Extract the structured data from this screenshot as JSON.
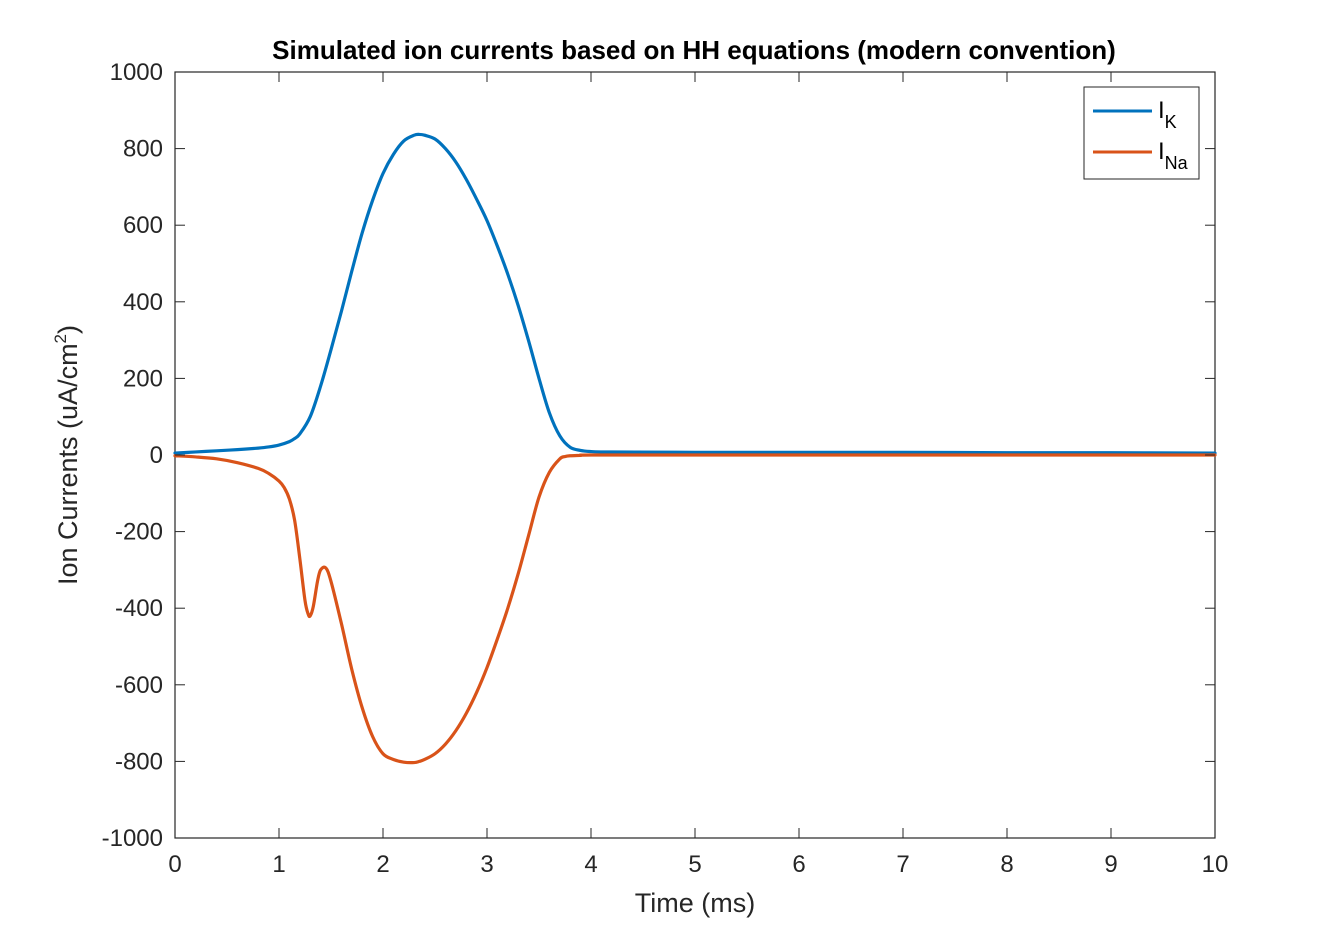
{
  "chart_data": {
    "type": "line",
    "title": "Simulated ion currents based on HH equations (modern convention)",
    "xlabel": "Time (ms)",
    "ylabel": {
      "main": "Ion Currents (uA/cm",
      "sup": "2",
      "end": ")"
    },
    "xlim": [
      0,
      10
    ],
    "ylim": [
      -1000,
      1000
    ],
    "xticks": [
      0,
      1,
      2,
      3,
      4,
      5,
      6,
      7,
      8,
      9,
      10
    ],
    "yticks": [
      -1000,
      -800,
      -600,
      -400,
      -200,
      0,
      200,
      400,
      600,
      800,
      1000
    ],
    "grid": false,
    "legend_position": "top-right",
    "series": [
      {
        "name": "I_K",
        "label_main": "I",
        "label_sub": "K",
        "color": "#0072BD",
        "x": [
          0,
          0.2,
          0.4,
          0.6,
          0.8,
          0.9,
          1.0,
          1.1,
          1.15,
          1.2,
          1.3,
          1.4,
          1.5,
          1.6,
          1.7,
          1.8,
          1.9,
          2.0,
          2.1,
          2.2,
          2.3,
          2.35,
          2.4,
          2.5,
          2.6,
          2.7,
          2.8,
          2.9,
          3.0,
          3.1,
          3.2,
          3.3,
          3.4,
          3.5,
          3.6,
          3.7,
          3.8,
          3.9,
          4.0,
          4.1,
          4.2,
          5,
          6,
          7,
          8,
          9,
          10
        ],
        "y": [
          5,
          8,
          11,
          14,
          18,
          21,
          26,
          35,
          43,
          55,
          100,
          180,
          275,
          375,
          480,
          580,
          665,
          735,
          785,
          820,
          835,
          837,
          835,
          825,
          800,
          765,
          720,
          668,
          612,
          545,
          472,
          390,
          298,
          200,
          110,
          50,
          20,
          12,
          9,
          8,
          8,
          7,
          7,
          7,
          6,
          6,
          5
        ]
      },
      {
        "name": "I_Na",
        "label_main": "I",
        "label_sub": "Na",
        "color": "#D95319",
        "x": [
          0,
          0.2,
          0.4,
          0.6,
          0.8,
          0.9,
          1.0,
          1.05,
          1.1,
          1.15,
          1.2,
          1.25,
          1.28,
          1.3,
          1.33,
          1.37,
          1.4,
          1.45,
          1.5,
          1.6,
          1.7,
          1.8,
          1.9,
          2.0,
          2.1,
          2.2,
          2.3,
          2.35,
          2.4,
          2.5,
          2.6,
          2.7,
          2.8,
          2.9,
          3.0,
          3.1,
          3.2,
          3.3,
          3.4,
          3.5,
          3.6,
          3.7,
          3.75,
          3.8,
          3.9,
          4.0,
          5,
          6,
          7,
          8,
          9,
          10
        ],
        "y": [
          -2,
          -5,
          -10,
          -20,
          -35,
          -48,
          -68,
          -85,
          -115,
          -170,
          -270,
          -380,
          -415,
          -420,
          -395,
          -330,
          -300,
          -295,
          -330,
          -440,
          -560,
          -660,
          -735,
          -780,
          -795,
          -802,
          -803,
          -800,
          -795,
          -780,
          -755,
          -720,
          -675,
          -620,
          -555,
          -480,
          -400,
          -310,
          -210,
          -110,
          -45,
          -10,
          -4,
          -2,
          -1,
          0,
          0,
          0,
          0,
          0,
          0,
          0
        ]
      }
    ]
  }
}
